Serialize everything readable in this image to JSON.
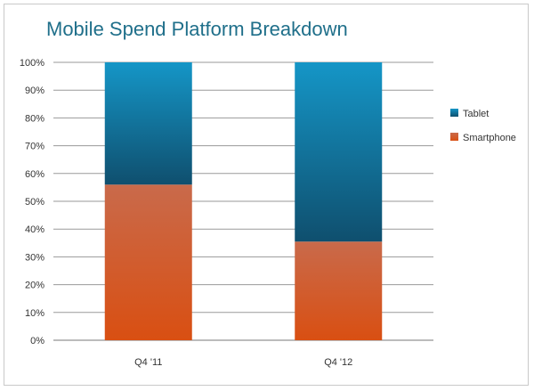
{
  "chart_data": {
    "type": "bar",
    "stacked": true,
    "title": "Mobile Spend Platform Breakdown",
    "categories": [
      "Q4 '11",
      "Q4 '12"
    ],
    "series": [
      {
        "name": "Smartphone",
        "values": [
          56,
          35.5
        ],
        "color_top": "#c96a4b",
        "color_bottom": "#d94f12"
      },
      {
        "name": "Tablet",
        "values": [
          44,
          64.5
        ],
        "color_top": "#1596c7",
        "color_bottom": "#0f4f6e"
      }
    ],
    "ylim": [
      0,
      100
    ],
    "yticks": [
      "0%",
      "10%",
      "20%",
      "30%",
      "40%",
      "50%",
      "60%",
      "70%",
      "80%",
      "90%",
      "100%"
    ],
    "grid": true,
    "legend": {
      "placement": "right",
      "entries": [
        "Tablet",
        "Smartphone"
      ]
    }
  }
}
